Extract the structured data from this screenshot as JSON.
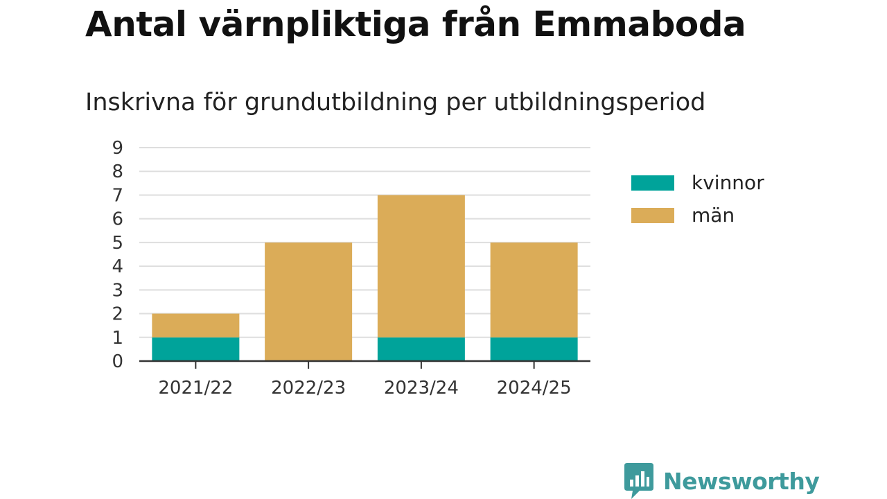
{
  "header": {
    "title": "Antal värnpliktiga från Emmaboda",
    "subtitle": "Inskrivna för grundutbildning per utbildningsperiod"
  },
  "chart_data": {
    "type": "bar",
    "stacked": true,
    "categories": [
      "2021/22",
      "2022/23",
      "2023/24",
      "2024/25"
    ],
    "series": [
      {
        "name": "kvinnor",
        "values": [
          1,
          0,
          1,
          1
        ],
        "color": "#00a39a"
      },
      {
        "name": "män",
        "values": [
          1,
          5,
          6,
          4
        ],
        "color": "#dbac58"
      }
    ],
    "yticks": [
      "0",
      "1",
      "2",
      "3",
      "4",
      "5",
      "6",
      "7",
      "8",
      "9"
    ],
    "ylim": [
      0,
      9
    ],
    "grid": true,
    "legend_position": "right"
  },
  "legend": {
    "items": [
      {
        "label": "kvinnor",
        "color": "#00a39a"
      },
      {
        "label": "män",
        "color": "#dbac58"
      }
    ]
  },
  "branding": {
    "name": "Newsworthy",
    "icon": "newsworthy-logo-icon",
    "color": "#3e9a9c"
  }
}
